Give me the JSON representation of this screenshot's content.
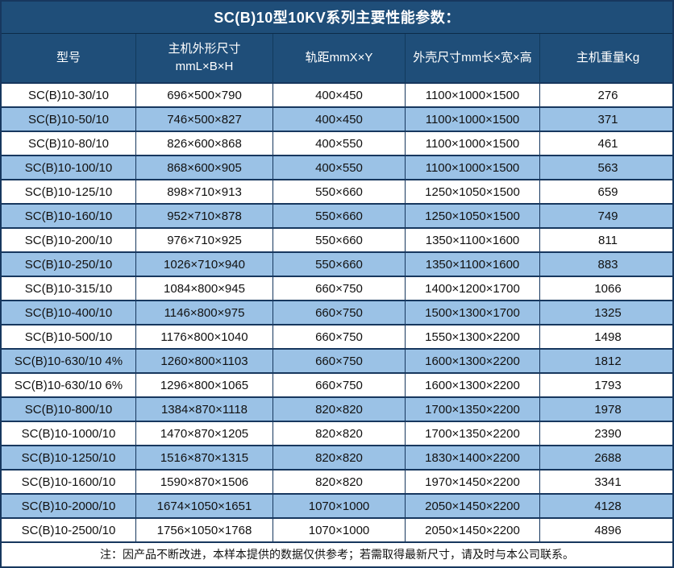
{
  "title": "SC(B)10型10KV系列主要性能参数：",
  "colors": {
    "header_bg": "#1F4E79",
    "stripe_bg": "#9BC2E6",
    "row_bg": "#FFFFFF",
    "border": "#17375E",
    "header_text": "#FFFFFF",
    "body_text": "#111111"
  },
  "table": {
    "columns": [
      {
        "label": "型号"
      },
      {
        "label": "主机外形尺寸",
        "label2": "mmL×B×H"
      },
      {
        "label": "轨距mmX×Y"
      },
      {
        "label": "外壳尺寸mm长×宽×高"
      },
      {
        "label": "主机重量Kg"
      }
    ],
    "rows": [
      [
        "SC(B)10-30/10",
        "696×500×790",
        "400×450",
        "1100×1000×1500",
        "276"
      ],
      [
        "SC(B)10-50/10",
        "746×500×827",
        "400×450",
        "1100×1000×1500",
        "371"
      ],
      [
        "SC(B)10-80/10",
        "826×600×868",
        "400×550",
        "1100×1000×1500",
        "461"
      ],
      [
        "SC(B)10-100/10",
        "868×600×905",
        "400×550",
        "1100×1000×1500",
        "563"
      ],
      [
        "SC(B)10-125/10",
        "898×710×913",
        "550×660",
        "1250×1050×1500",
        "659"
      ],
      [
        "SC(B)10-160/10",
        "952×710×878",
        "550×660",
        "1250×1050×1500",
        "749"
      ],
      [
        "SC(B)10-200/10",
        "976×710×925",
        "550×660",
        "1350×1100×1600",
        "811"
      ],
      [
        "SC(B)10-250/10",
        "1026×710×940",
        "550×660",
        "1350×1100×1600",
        "883"
      ],
      [
        "SC(B)10-315/10",
        "1084×800×945",
        "660×750",
        "1400×1200×1700",
        "1066"
      ],
      [
        "SC(B)10-400/10",
        "1146×800×975",
        "660×750",
        "1500×1300×1700",
        "1325"
      ],
      [
        "SC(B)10-500/10",
        "1176×800×1040",
        "660×750",
        "1550×1300×2200",
        "1498"
      ],
      [
        "SC(B)10-630/10 4%",
        "1260×800×1103",
        "660×750",
        "1600×1300×2200",
        "1812"
      ],
      [
        "SC(B)10-630/10 6%",
        "1296×800×1065",
        "660×750",
        "1600×1300×2200",
        "1793"
      ],
      [
        "SC(B)10-800/10",
        "1384×870×1118",
        "820×820",
        "1700×1350×2200",
        "1978"
      ],
      [
        "SC(B)10-1000/10",
        "1470×870×1205",
        "820×820",
        "1700×1350×2200",
        "2390"
      ],
      [
        "SC(B)10-1250/10",
        "1516×870×1315",
        "820×820",
        "1830×1400×2200",
        "2688"
      ],
      [
        "SC(B)10-1600/10",
        "1590×870×1506",
        "820×820",
        "1970×1450×2200",
        "3341"
      ],
      [
        "SC(B)10-2000/10",
        "1674×1050×1651",
        "1070×1000",
        "2050×1450×2200",
        "4128"
      ],
      [
        "SC(B)10-2500/10",
        "1756×1050×1768",
        "1070×1000",
        "2050×1450×2200",
        "4896"
      ]
    ]
  },
  "footnote": "注：因产品不断改进，本样本提供的数据仅供参考；若需取得最新尺寸，请及时与本公司联系。"
}
